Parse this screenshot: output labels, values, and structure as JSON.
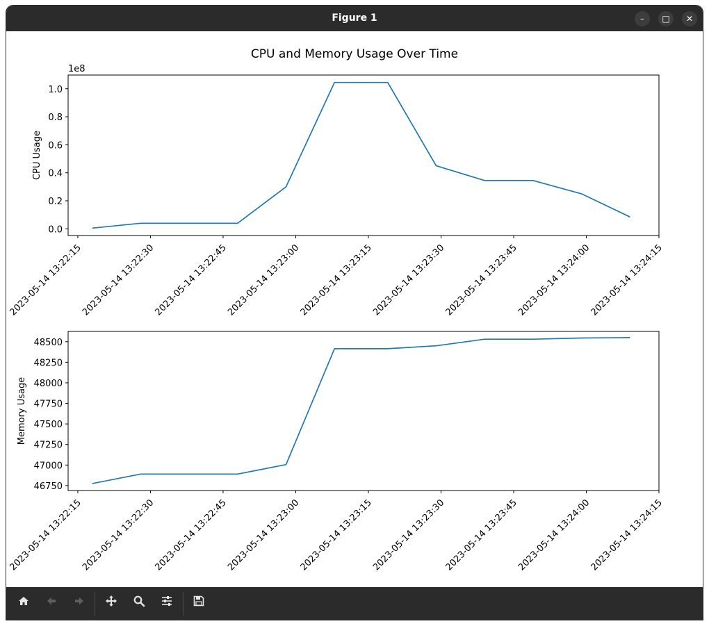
{
  "window": {
    "title": "Figure 1",
    "buttons": {
      "minimize": "–",
      "maximize": "□",
      "close": "✕"
    }
  },
  "figure": {
    "title": "CPU and Memory Usage Over Time"
  },
  "toolbar": {
    "items": [
      "home-icon",
      "back-arrow-icon",
      "forward-arrow-icon",
      "move-icon",
      "zoom-icon",
      "configure-subplots-icon",
      "save-icon"
    ]
  },
  "colors": {
    "line": "#1f77b4",
    "titlebar": "#2b2b2b",
    "toolbar": "#2b2b2b"
  },
  "chart_data": [
    {
      "type": "line",
      "title": "",
      "xlabel": "",
      "ylabel": "CPU Usage",
      "offset_text": "1e8",
      "x": [
        "2023-05-14 13:22:18",
        "2023-05-14 13:22:28",
        "2023-05-14 13:22:38",
        "2023-05-14 13:22:48",
        "2023-05-14 13:22:58",
        "2023-05-14 13:23:08",
        "2023-05-14 13:23:19",
        "2023-05-14 13:23:29",
        "2023-05-14 13:23:39",
        "2023-05-14 13:23:49",
        "2023-05-14 13:23:59",
        "2023-05-14 13:24:09"
      ],
      "x_ticks": [
        "2023-05-14 13:22:15",
        "2023-05-14 13:22:30",
        "2023-05-14 13:22:45",
        "2023-05-14 13:23:00",
        "2023-05-14 13:23:15",
        "2023-05-14 13:23:30",
        "2023-05-14 13:23:45",
        "2023-05-14 13:24:00",
        "2023-05-14 13:24:15"
      ],
      "xlim": [
        "2023-05-14 13:22:13",
        "2023-05-14 13:24:15"
      ],
      "series": [
        {
          "values": [
            0.005,
            0.04,
            0.04,
            0.04,
            0.3,
            1.045,
            1.045,
            0.45,
            0.345,
            0.345,
            0.25,
            0.085
          ]
        }
      ],
      "y_ticks": [
        "0.0",
        "0.2",
        "0.4",
        "0.6",
        "0.8",
        "1.0"
      ],
      "ylim": [
        -0.048,
        1.098
      ]
    },
    {
      "type": "line",
      "title": "",
      "xlabel": "",
      "ylabel": "Memory Usage",
      "x": [
        "2023-05-14 13:22:18",
        "2023-05-14 13:22:28",
        "2023-05-14 13:22:38",
        "2023-05-14 13:22:48",
        "2023-05-14 13:22:58",
        "2023-05-14 13:23:08",
        "2023-05-14 13:23:19",
        "2023-05-14 13:23:29",
        "2023-05-14 13:23:39",
        "2023-05-14 13:23:49",
        "2023-05-14 13:23:59",
        "2023-05-14 13:24:09"
      ],
      "x_ticks": [
        "2023-05-14 13:22:15",
        "2023-05-14 13:22:30",
        "2023-05-14 13:22:45",
        "2023-05-14 13:23:00",
        "2023-05-14 13:23:15",
        "2023-05-14 13:23:30",
        "2023-05-14 13:23:45",
        "2023-05-14 13:24:00",
        "2023-05-14 13:24:15"
      ],
      "xlim": [
        "2023-05-14 13:22:13",
        "2023-05-14 13:24:15"
      ],
      "series": [
        {
          "values": [
            46775,
            46890,
            46890,
            46890,
            47005,
            48415,
            48415,
            48450,
            48530,
            48530,
            48545,
            48550
          ]
        }
      ],
      "y_ticks": [
        "46750",
        "47000",
        "47250",
        "47500",
        "47750",
        "48000",
        "48250",
        "48500"
      ],
      "ylim": [
        46690,
        48625
      ]
    }
  ]
}
